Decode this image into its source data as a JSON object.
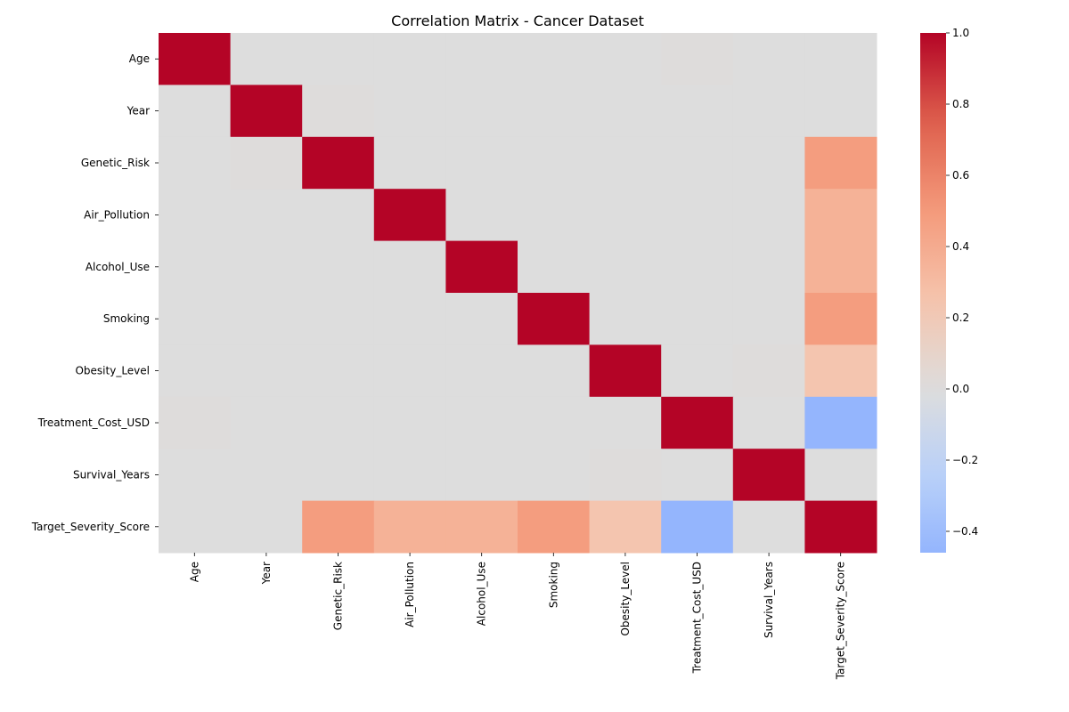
{
  "chart_data": {
    "type": "heatmap",
    "title": "Correlation Matrix - Cancer Dataset",
    "xlabel": "",
    "ylabel": "",
    "labels": [
      "Age",
      "Year",
      "Genetic_Risk",
      "Air_Pollution",
      "Alcohol_Use",
      "Smoking",
      "Obesity_Level",
      "Treatment_Cost_USD",
      "Survival_Years",
      "Target_Severity_Score"
    ],
    "matrix": [
      [
        1.0,
        0.0,
        0.0,
        0.0,
        0.0,
        0.0,
        0.0,
        0.01,
        0.0,
        0.0
      ],
      [
        0.0,
        1.0,
        0.01,
        0.0,
        0.0,
        0.0,
        0.0,
        0.0,
        0.0,
        0.0
      ],
      [
        0.0,
        0.01,
        1.0,
        0.0,
        0.0,
        0.0,
        0.0,
        0.0,
        0.0,
        0.48
      ],
      [
        0.0,
        0.0,
        0.0,
        1.0,
        0.0,
        0.0,
        0.0,
        0.0,
        0.0,
        0.36
      ],
      [
        0.0,
        0.0,
        0.0,
        0.0,
        1.0,
        0.0,
        0.0,
        0.0,
        0.0,
        0.36
      ],
      [
        0.0,
        0.0,
        0.0,
        0.0,
        0.0,
        1.0,
        0.0,
        0.0,
        0.0,
        0.48
      ],
      [
        0.0,
        0.0,
        0.0,
        0.0,
        0.0,
        0.0,
        1.0,
        0.0,
        0.01,
        0.24
      ],
      [
        0.01,
        0.0,
        0.0,
        0.0,
        0.0,
        0.0,
        0.0,
        1.0,
        0.0,
        -0.46
      ],
      [
        0.0,
        0.0,
        0.0,
        0.0,
        0.0,
        0.0,
        0.01,
        0.0,
        1.0,
        0.0
      ],
      [
        0.0,
        0.0,
        0.48,
        0.36,
        0.36,
        0.48,
        0.24,
        -0.46,
        0.0,
        1.0
      ]
    ],
    "colormap": "coolwarm",
    "vmin": -0.46,
    "vmax": 1.0,
    "vcenter": 0.0,
    "colorbar_ticks": [
      1.0,
      0.8,
      0.6,
      0.4,
      0.2,
      0.0,
      -0.2,
      -0.4
    ],
    "colorbar_tick_labels": [
      "1.0",
      "0.8",
      "0.6",
      "0.4",
      "0.2",
      "0.0",
      "−0.2",
      "−0.4"
    ],
    "grid": false,
    "legend": "colorbar-right"
  }
}
